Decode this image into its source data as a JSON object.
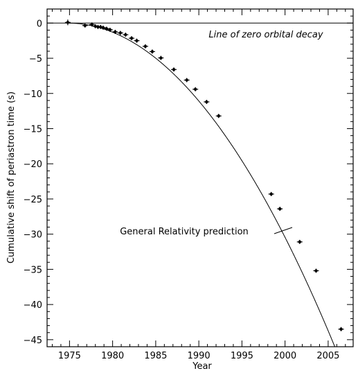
{
  "chart_data": {
    "type": "scatter",
    "title": "",
    "xlabel": "Year",
    "ylabel": "Cumulative shift of periastron time (s)",
    "xlim": [
      1972.4,
      2007.9
    ],
    "ylim": [
      -46.0,
      2.0
    ],
    "grid": false,
    "x_ticks": [
      1975,
      1980,
      1985,
      1990,
      1995,
      2000,
      2005
    ],
    "y_ticks": [
      0,
      -5,
      -10,
      -15,
      -20,
      -25,
      -30,
      -35,
      -40,
      -45
    ],
    "x_tick_labels": [
      "1975",
      "1980",
      "1985",
      "1990",
      "1995",
      "2000",
      "2005"
    ],
    "y_tick_labels": [
      "0",
      "−5",
      "−10",
      "−15",
      "−20",
      "−25",
      "−30",
      "−35",
      "−40",
      "−45"
    ],
    "reference_line": {
      "y": 0,
      "label": "Line of zero orbital decay"
    },
    "curve": {
      "label": "General Relativity prediction",
      "t0": 1974.8,
      "coeff": -0.04795
    },
    "series": [
      {
        "points": [
          {
            "x": 1974.8,
            "y": 0.1,
            "err": 0.4
          },
          {
            "x": 1976.8,
            "y": -0.35,
            "err": 0.1
          },
          {
            "x": 1977.6,
            "y": -0.2,
            "err": 0.1
          },
          {
            "x": 1978.0,
            "y": -0.45,
            "err": 0.1
          },
          {
            "x": 1978.3,
            "y": -0.55,
            "err": 0.1
          },
          {
            "x": 1978.6,
            "y": -0.55,
            "err": 0.1
          },
          {
            "x": 1978.9,
            "y": -0.65,
            "err": 0.1
          },
          {
            "x": 1979.3,
            "y": -0.8,
            "err": 0.1
          },
          {
            "x": 1979.7,
            "y": -0.95,
            "err": 0.1
          },
          {
            "x": 1980.3,
            "y": -1.25,
            "err": 0.1
          },
          {
            "x": 1980.9,
            "y": -1.4,
            "err": 0.1
          },
          {
            "x": 1981.5,
            "y": -1.65,
            "err": 0.1
          },
          {
            "x": 1982.2,
            "y": -2.15,
            "err": 0.1
          },
          {
            "x": 1982.8,
            "y": -2.5,
            "err": 0.1
          },
          {
            "x": 1983.8,
            "y": -3.3,
            "err": 0.1
          },
          {
            "x": 1984.6,
            "y": -4.05,
            "err": 0.1
          },
          {
            "x": 1985.6,
            "y": -4.95,
            "err": 0.1
          },
          {
            "x": 1987.1,
            "y": -6.6,
            "err": 0.1
          },
          {
            "x": 1988.6,
            "y": -8.1,
            "err": 0.1
          },
          {
            "x": 1989.6,
            "y": -9.4,
            "err": 0.1
          },
          {
            "x": 1990.9,
            "y": -11.2,
            "err": 0.1
          },
          {
            "x": 1992.3,
            "y": -13.2,
            "err": 0.1
          },
          {
            "x": 1998.4,
            "y": -24.3,
            "err": 0.1
          },
          {
            "x": 1999.4,
            "y": -26.4,
            "err": 0.1
          },
          {
            "x": 2001.7,
            "y": -31.1,
            "err": 0.1
          },
          {
            "x": 2003.6,
            "y": -35.2,
            "err": 0.1
          },
          {
            "x": 2006.5,
            "y": -43.5,
            "err": 0.1
          }
        ]
      }
    ]
  }
}
